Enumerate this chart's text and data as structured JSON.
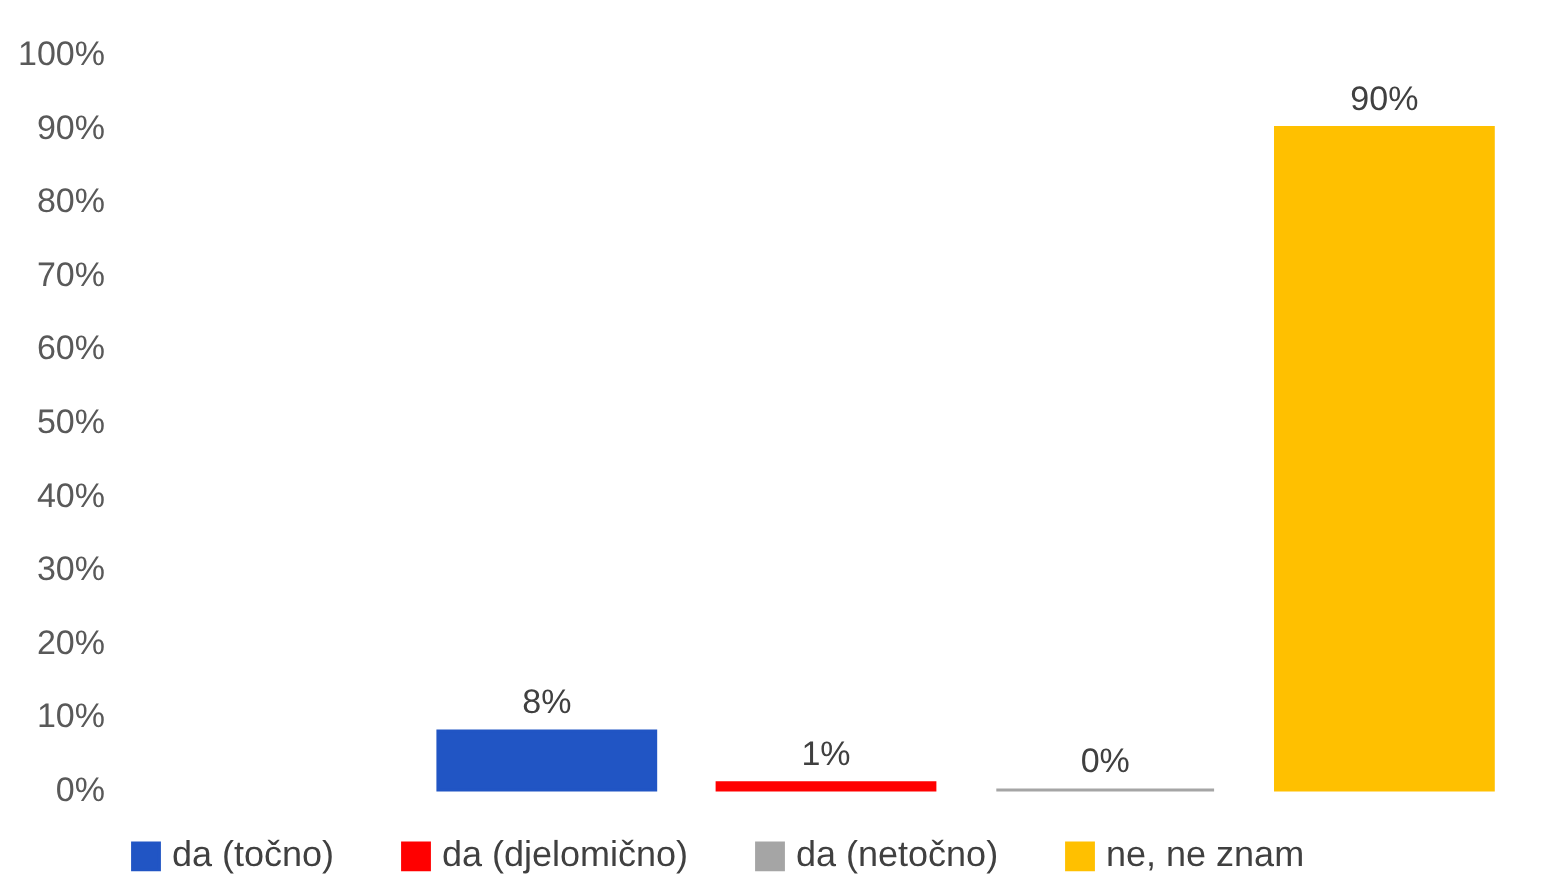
{
  "chart_data": {
    "type": "bar",
    "categories": [
      null
    ],
    "series": [
      {
        "name": "da (točno)",
        "color": "#2155c4",
        "values": [
          8
        ]
      },
      {
        "name": "da (djelomično)",
        "color": "#ff0000",
        "values": [
          1
        ]
      },
      {
        "name": "da (netočno)",
        "color": "#a5a5a5",
        "values": [
          0
        ]
      },
      {
        "name": "ne, ne znam",
        "color": "#ffc000",
        "values": [
          90
        ]
      }
    ],
    "ylim": [
      0,
      100
    ],
    "yticks": [
      {
        "value": 0,
        "label": "0%"
      },
      {
        "value": 10,
        "label": "10%"
      },
      {
        "value": 20,
        "label": "20%"
      },
      {
        "value": 30,
        "label": "30%"
      },
      {
        "value": 40,
        "label": "40%"
      },
      {
        "value": 50,
        "label": "50%"
      },
      {
        "value": 60,
        "label": "60%"
      },
      {
        "value": 70,
        "label": "70%"
      },
      {
        "value": 80,
        "label": "80%"
      },
      {
        "value": 90,
        "label": "90%"
      },
      {
        "value": 100,
        "label": "100%"
      }
    ],
    "value_labels": [
      [
        "8%"
      ],
      [
        "1%"
      ],
      [
        "0%"
      ],
      [
        "90%"
      ]
    ],
    "grid": false,
    "legend": "bottom",
    "tick_labels": "y"
  }
}
